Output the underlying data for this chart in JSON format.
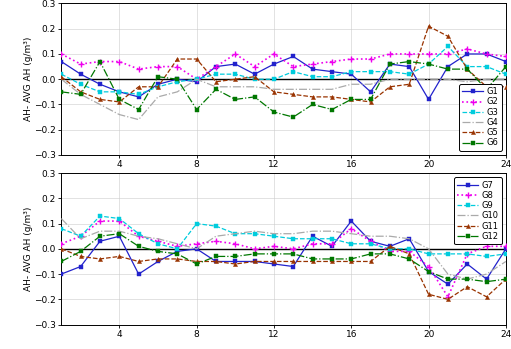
{
  "x": [
    1,
    2,
    3,
    4,
    5,
    6,
    7,
    8,
    9,
    10,
    11,
    12,
    13,
    14,
    15,
    16,
    17,
    18,
    19,
    20,
    21,
    22,
    23,
    24
  ],
  "G1": [
    0.07,
    0.02,
    -0.02,
    -0.05,
    -0.07,
    -0.02,
    0.0,
    -0.01,
    0.05,
    0.06,
    0.02,
    0.06,
    0.09,
    0.04,
    0.03,
    0.02,
    -0.05,
    0.06,
    0.05,
    -0.08,
    0.05,
    0.1,
    0.1,
    0.07
  ],
  "G2": [
    0.1,
    0.06,
    0.07,
    0.07,
    0.04,
    0.05,
    0.05,
    0.0,
    0.05,
    0.1,
    0.05,
    0.1,
    0.05,
    0.06,
    0.07,
    0.08,
    0.08,
    0.1,
    0.1,
    0.1,
    0.1,
    0.12,
    0.1,
    0.09
  ],
  "G3": [
    0.02,
    -0.02,
    -0.05,
    -0.05,
    -0.06,
    -0.03,
    -0.01,
    0.0,
    0.02,
    0.02,
    0.0,
    0.0,
    0.03,
    0.01,
    0.01,
    0.03,
    0.03,
    0.03,
    0.02,
    0.06,
    0.13,
    0.05,
    0.05,
    0.02
  ],
  "G4": [
    0.0,
    -0.06,
    -0.1,
    -0.14,
    -0.16,
    -0.07,
    -0.05,
    0.0,
    -0.03,
    -0.03,
    -0.03,
    -0.04,
    -0.04,
    -0.04,
    -0.04,
    -0.02,
    -0.02,
    0.0,
    0.0,
    0.0,
    0.0,
    -0.01,
    0.0,
    0.0
  ],
  "G5": [
    0.01,
    -0.05,
    -0.08,
    -0.09,
    -0.03,
    -0.03,
    0.08,
    0.08,
    -0.01,
    0.0,
    0.01,
    -0.05,
    -0.06,
    -0.07,
    -0.07,
    -0.08,
    -0.09,
    -0.03,
    -0.02,
    0.21,
    0.17,
    0.04,
    -0.03,
    -0.03
  ],
  "G6": [
    -0.05,
    -0.06,
    0.07,
    -0.08,
    -0.12,
    0.01,
    0.0,
    -0.12,
    -0.04,
    -0.08,
    -0.07,
    -0.13,
    -0.15,
    -0.1,
    -0.12,
    -0.08,
    -0.08,
    0.06,
    0.07,
    0.06,
    0.04,
    0.04,
    -0.04,
    0.05
  ],
  "G7": [
    -0.1,
    -0.07,
    0.03,
    0.05,
    -0.1,
    -0.05,
    -0.01,
    0.0,
    -0.05,
    -0.05,
    -0.05,
    -0.06,
    -0.07,
    0.05,
    0.01,
    0.11,
    0.03,
    0.01,
    0.04,
    -0.09,
    -0.14,
    -0.06,
    -0.12,
    0.0
  ],
  "G8": [
    0.02,
    0.05,
    0.11,
    0.11,
    0.05,
    0.03,
    0.01,
    0.02,
    0.03,
    0.02,
    0.0,
    0.01,
    0.0,
    0.02,
    0.02,
    0.08,
    0.03,
    -0.01,
    -0.01,
    -0.07,
    -0.19,
    -0.02,
    0.01,
    0.01
  ],
  "G9": [
    0.08,
    0.05,
    0.13,
    0.12,
    0.06,
    0.02,
    0.0,
    0.1,
    0.09,
    0.06,
    0.06,
    0.05,
    0.04,
    0.04,
    0.04,
    0.02,
    0.02,
    0.0,
    0.0,
    -0.02,
    -0.02,
    -0.02,
    -0.03,
    -0.02
  ],
  "G10": [
    0.12,
    0.04,
    0.07,
    0.07,
    0.05,
    0.04,
    0.02,
    0.0,
    0.05,
    0.06,
    0.07,
    0.06,
    0.06,
    0.07,
    0.07,
    0.06,
    0.05,
    0.05,
    0.04,
    0.0,
    -0.1,
    -0.12,
    -0.1,
    -0.05
  ],
  "G11": [
    0.0,
    -0.03,
    -0.04,
    -0.03,
    -0.05,
    -0.04,
    -0.04,
    -0.05,
    -0.05,
    -0.06,
    -0.05,
    -0.05,
    -0.05,
    -0.05,
    -0.05,
    -0.05,
    -0.05,
    0.01,
    -0.02,
    -0.18,
    -0.2,
    -0.15,
    -0.19,
    -0.12
  ],
  "G12": [
    -0.05,
    -0.01,
    0.05,
    0.06,
    0.01,
    -0.01,
    -0.02,
    -0.06,
    -0.03,
    -0.03,
    -0.02,
    -0.02,
    -0.02,
    -0.04,
    -0.04,
    -0.04,
    -0.02,
    -0.02,
    -0.04,
    -0.09,
    -0.12,
    -0.12,
    -0.13,
    -0.12
  ],
  "color_G1": "#2222cc",
  "color_G2": "#ee00ee",
  "color_G3": "#00ccdd",
  "color_G4": "#aaaaaa",
  "color_G5": "#993300",
  "color_G6": "#007700",
  "color_G7": "#2222cc",
  "color_G8": "#ee00ee",
  "color_G9": "#00ccdd",
  "color_G10": "#aaaaaa",
  "color_G11": "#993300",
  "color_G12": "#007700",
  "ylabel": "AH- AVG AH (g/m³)",
  "xlim": [
    1,
    24
  ],
  "ylim": [
    -0.3,
    0.3
  ],
  "xticks": [
    4,
    8,
    12,
    16,
    20,
    24
  ],
  "yticks": [
    -0.3,
    -0.2,
    -0.1,
    0.0,
    0.1,
    0.2,
    0.3
  ]
}
